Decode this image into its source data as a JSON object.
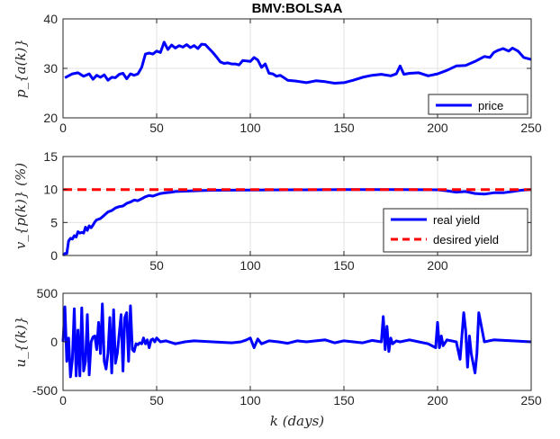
{
  "title": "BMV:BOLSAA",
  "xlabel": "k (days)",
  "chart_data": [
    {
      "type": "line",
      "ylabel": "p_{a(k)}",
      "xlim": [
        0,
        250
      ],
      "ylim": [
        20,
        40
      ],
      "xticks": [
        "0",
        "50",
        "100",
        "150",
        "200",
        "250"
      ],
      "yticks": [
        "20",
        "30",
        "40"
      ],
      "grid": true,
      "legend": "bottom-right",
      "series": [
        {
          "name": "price",
          "color": "#0000ff",
          "style": "solid",
          "x": [
            1,
            5,
            8,
            11,
            14,
            16,
            18,
            20,
            22,
            24,
            26,
            28,
            30,
            32,
            34,
            36,
            38,
            40,
            42,
            44,
            46,
            48,
            50,
            52,
            54,
            56,
            58,
            60,
            62,
            64,
            66,
            68,
            70,
            72,
            74,
            76,
            78,
            80,
            82,
            84,
            86,
            88,
            90,
            92,
            94,
            96,
            98,
            100,
            102,
            104,
            106,
            108,
            110,
            112,
            114,
            116,
            118,
            120,
            125,
            130,
            135,
            140,
            145,
            150,
            155,
            160,
            165,
            170,
            175,
            178,
            180,
            182,
            185,
            190,
            195,
            200,
            205,
            210,
            215,
            220,
            225,
            228,
            230,
            232,
            235,
            238,
            240,
            243,
            246,
            250
          ],
          "y": [
            28.1,
            28.9,
            29.1,
            28.4,
            28.9,
            27.8,
            28.6,
            28.2,
            28.7,
            27.6,
            28.2,
            28.1,
            28.8,
            29.0,
            27.9,
            28.9,
            28.6,
            28.9,
            30.2,
            32.9,
            33.1,
            32.9,
            33.5,
            33.2,
            35.3,
            33.8,
            34.7,
            34.1,
            34.6,
            34.3,
            34.8,
            34.2,
            34.6,
            34.0,
            34.9,
            34.8,
            34.0,
            33.2,
            32.3,
            31.3,
            31.0,
            31.1,
            30.9,
            30.9,
            30.7,
            31.6,
            31.5,
            31.4,
            32.2,
            31.7,
            30.2,
            30.9,
            29.0,
            28.9,
            28.4,
            28.6,
            28.1,
            27.6,
            27.4,
            27.1,
            27.5,
            27.3,
            27.0,
            27.1,
            27.6,
            28.2,
            28.6,
            28.8,
            28.5,
            28.9,
            30.5,
            28.8,
            29.0,
            29.1,
            28.5,
            28.9,
            29.6,
            30.5,
            30.6,
            31.4,
            32.4,
            32.2,
            33.2,
            33.6,
            34.0,
            33.5,
            34.1,
            33.5,
            32.2,
            31.8
          ]
        }
      ]
    },
    {
      "type": "line",
      "ylabel": "v_{p(k)} (%)",
      "xlim": [
        0,
        250
      ],
      "ylim": [
        0,
        15
      ],
      "xticks": [
        "50",
        "100",
        "150",
        "200"
      ],
      "yticks": [
        "0",
        "5",
        "10",
        "15"
      ],
      "grid": true,
      "legend": "bottom-right",
      "series": [
        {
          "name": "real yield",
          "color": "#0000ff",
          "style": "solid",
          "x": [
            0,
            1,
            2,
            3,
            4,
            5,
            6,
            7,
            8,
            9,
            10,
            11,
            12,
            13,
            14,
            15,
            16,
            17,
            18,
            20,
            22,
            24,
            26,
            28,
            30,
            32,
            34,
            36,
            38,
            40,
            42,
            44,
            46,
            48,
            50,
            52,
            55,
            58,
            60,
            65,
            70,
            75,
            80,
            90,
            100,
            110,
            120,
            130,
            140,
            150,
            160,
            170,
            180,
            190,
            200,
            205,
            210,
            215,
            220,
            225,
            230,
            235,
            240,
            245,
            250
          ],
          "y": [
            0.0,
            0.3,
            0.3,
            2.2,
            2.6,
            2.5,
            3.0,
            2.8,
            3.6,
            3.4,
            3.5,
            3.4,
            4.3,
            3.8,
            4.5,
            4.2,
            4.6,
            5.1,
            5.4,
            5.6,
            6.1,
            6.6,
            6.8,
            7.2,
            7.4,
            7.5,
            7.9,
            8.1,
            8.4,
            8.3,
            8.6,
            8.9,
            9.1,
            9.0,
            9.2,
            9.4,
            9.5,
            9.6,
            9.7,
            9.75,
            9.8,
            9.85,
            9.88,
            9.9,
            9.92,
            9.94,
            9.95,
            9.96,
            9.97,
            9.98,
            9.98,
            9.99,
            9.99,
            9.97,
            9.95,
            9.8,
            9.6,
            9.7,
            9.4,
            9.3,
            9.5,
            9.5,
            9.7,
            9.9,
            10.0
          ]
        },
        {
          "name": "desired yield",
          "color": "#ff0000",
          "style": "dashed",
          "x": [
            0,
            250
          ],
          "y": [
            10,
            10
          ]
        }
      ]
    },
    {
      "type": "line",
      "ylabel": "u_{(k)}",
      "xlim": [
        0,
        250
      ],
      "ylim": [
        -500,
        500
      ],
      "xticks": [
        "0",
        "50",
        "100",
        "150",
        "200",
        "250"
      ],
      "yticks": [
        "-500",
        "0",
        "500"
      ],
      "grid": true,
      "legend": "none",
      "series": [
        {
          "name": "",
          "color": "#0000ff",
          "style": "solid",
          "x": [
            0,
            1,
            2,
            3,
            4,
            5,
            6,
            7,
            8,
            9,
            10,
            11,
            12,
            13,
            14,
            15,
            16,
            17,
            18,
            19,
            20,
            21,
            22,
            23,
            24,
            25,
            26,
            27,
            28,
            29,
            30,
            31,
            32,
            33,
            34,
            35,
            36,
            37,
            38,
            39,
            40,
            41,
            42,
            43,
            44,
            45,
            46,
            47,
            48,
            49,
            50,
            52,
            55,
            60,
            65,
            70,
            80,
            90,
            95,
            98,
            100,
            102,
            104,
            106,
            110,
            115,
            120,
            125,
            130,
            140,
            145,
            150,
            155,
            160,
            165,
            170,
            171,
            172,
            173,
            174,
            175,
            176,
            178,
            180,
            185,
            190,
            195,
            199,
            200,
            201,
            202,
            203,
            205,
            210,
            212,
            214,
            215,
            216,
            217,
            218,
            220,
            221,
            222,
            225,
            230,
            240,
            250
          ],
          "y": [
            0,
            360,
            -200,
            40,
            -360,
            -180,
            340,
            -350,
            120,
            -350,
            350,
            -300,
            -200,
            280,
            -340,
            0,
            50,
            60,
            -80,
            200,
            -120,
            390,
            -200,
            -280,
            -120,
            250,
            -320,
            330,
            -220,
            -120,
            80,
            280,
            -300,
            250,
            300,
            -200,
            370,
            -80,
            -100,
            -20,
            -30,
            -10,
            -20,
            40,
            -20,
            20,
            -60,
            20,
            30,
            0,
            40,
            0,
            10,
            -20,
            0,
            10,
            0,
            -10,
            0,
            20,
            40,
            -60,
            30,
            -20,
            10,
            0,
            -15,
            10,
            0,
            20,
            -10,
            10,
            0,
            -10,
            15,
            0,
            260,
            -80,
            160,
            -100,
            40,
            -20,
            10,
            0,
            20,
            0,
            -20,
            -60,
            200,
            -60,
            60,
            -40,
            20,
            0,
            -180,
            300,
            120,
            -260,
            60,
            -120,
            -320,
            -120,
            300,
            0,
            20,
            10,
            0
          ]
        }
      ]
    }
  ]
}
